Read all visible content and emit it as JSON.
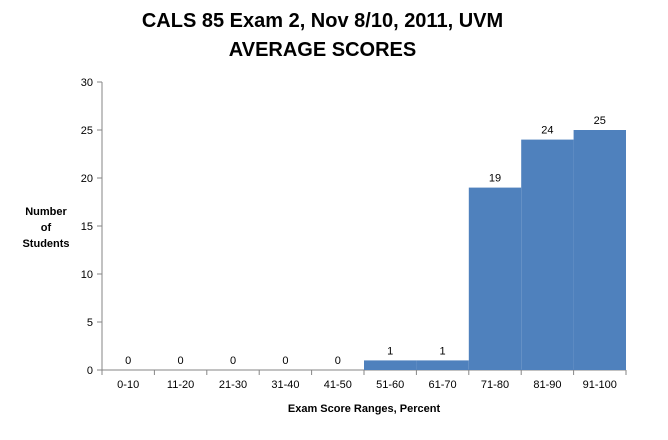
{
  "chart_data": {
    "type": "bar",
    "title": "CALS 85 Exam 2, Nov 8/10, 2011, UVM",
    "subtitle": "AVERAGE SCORES",
    "xlabel": "Exam Score Ranges, Percent",
    "ylabel_lines": [
      "Number",
      "of",
      "Students"
    ],
    "categories": [
      "0-10",
      "11-20",
      "21-30",
      "31-40",
      "41-50",
      "51-60",
      "61-70",
      "71-80",
      "81-90",
      "91-100"
    ],
    "values": [
      0,
      0,
      0,
      0,
      0,
      1,
      1,
      19,
      24,
      25
    ],
    "ylim": [
      0,
      30
    ],
    "yticks": [
      0,
      5,
      10,
      15,
      20,
      25,
      30
    ],
    "grid": false,
    "legend": "none",
    "bar_color": "#4F81BD",
    "data_labels": true
  }
}
